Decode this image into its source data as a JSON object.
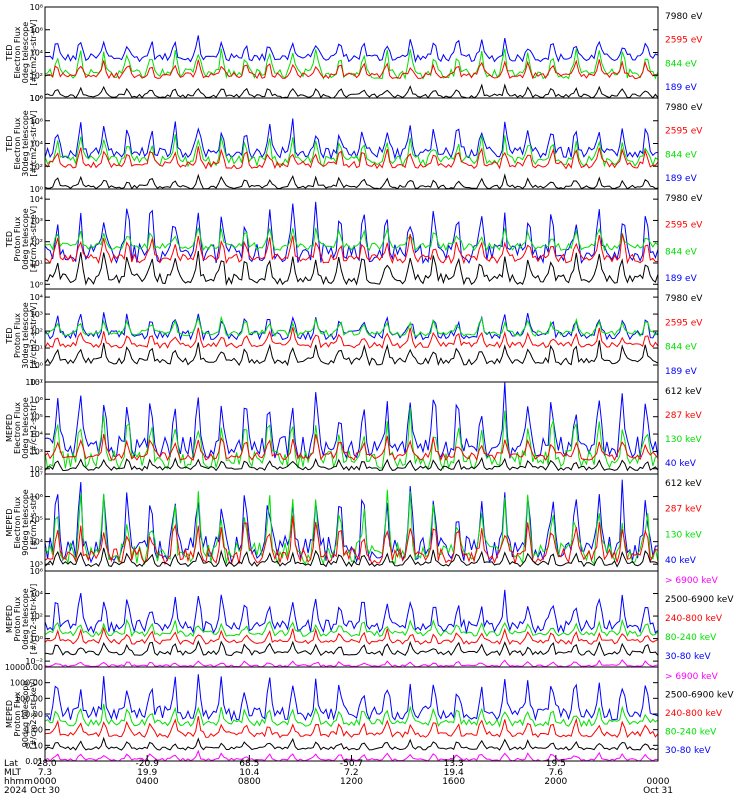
{
  "colors": {
    "blue": "#0000ff",
    "red": "#ff0000",
    "green": "#00e000",
    "black": "#000000",
    "magenta": "#ff00ff"
  },
  "chart_data": [
    {
      "type": "line",
      "ylabel": [
        "TED",
        "Electron Flux",
        "0deg telescope",
        "[#/cm2-s-str-eV]"
      ],
      "y_tick_labels": [
        "10⁰",
        "10²",
        "10⁴",
        "10⁶",
        "10⁸"
      ],
      "ylim": [
        1,
        100000000
      ],
      "yscale": "log",
      "series": [
        {
          "name": "7980 eV",
          "color": "black",
          "level": [
            0,
            1
          ]
        },
        {
          "name": "2595 eV",
          "color": "red",
          "level": [
            1.7,
            3.2
          ]
        },
        {
          "name": "844 eV",
          "color": "green",
          "level": [
            1.7,
            4.2
          ]
        },
        {
          "name": "189 eV",
          "color": "blue",
          "level": [
            3.2,
            5.2
          ]
        }
      ]
    },
    {
      "type": "line",
      "ylabel": [
        "TED",
        "Electron Flux",
        "30deg telescope",
        "[#/cm2-s-str-eV]"
      ],
      "y_tick_labels": [
        "10⁰",
        "10²",
        "10⁴",
        "10⁶",
        "10⁸"
      ],
      "ylim": [
        1,
        100000000
      ],
      "yscale": "log",
      "series": [
        {
          "name": "7980 eV",
          "color": "black",
          "level": [
            0,
            1
          ]
        },
        {
          "name": "2595 eV",
          "color": "red",
          "level": [
            1.8,
            3.6
          ]
        },
        {
          "name": "844 eV",
          "color": "green",
          "level": [
            2,
            4.6
          ]
        },
        {
          "name": "189 eV",
          "color": "blue",
          "level": [
            2.7,
            5.6
          ]
        }
      ]
    },
    {
      "type": "line",
      "ylabel": [
        "TED",
        "Proton Flux",
        "0deg telescope",
        "[#/cm2-s-str-eV]"
      ],
      "y_tick_labels": [
        "10⁰",
        "10¹",
        "10²",
        "10³",
        "10⁴"
      ],
      "ylim": [
        0.6,
        30000
      ],
      "yscale": "log",
      "series": [
        {
          "name": "7980 eV",
          "color": "black",
          "level": [
            0,
            1.4
          ]
        },
        {
          "name": "2595 eV",
          "color": "red",
          "level": [
            1,
            2.2
          ]
        },
        {
          "name": "844 eV",
          "color": "green",
          "level": [
            1.6,
            2.6
          ]
        },
        {
          "name": "189 eV",
          "color": "blue",
          "level": [
            1,
            3.6
          ]
        }
      ]
    },
    {
      "type": "line",
      "ylabel": [
        "TED",
        "Proton Flux",
        "30deg telescope",
        "[#/cm2-s-str-eV]"
      ],
      "y_tick_labels": [
        "10⁻¹",
        "10⁰",
        "10¹",
        "10²",
        "10³",
        "10⁴"
      ],
      "ylim": [
        0.1,
        30000
      ],
      "yscale": "log",
      "series": [
        {
          "name": "7980 eV",
          "color": "black",
          "level": [
            0,
            1.2
          ]
        },
        {
          "name": "2595 eV",
          "color": "red",
          "level": [
            1,
            2
          ]
        },
        {
          "name": "844 eV",
          "color": "green",
          "level": [
            1.7,
            2.7
          ]
        },
        {
          "name": "189 eV",
          "color": "blue",
          "level": [
            1.5,
            3
          ]
        }
      ]
    },
    {
      "type": "line",
      "ylabel": [
        "MEPED",
        "Electron Flux",
        "0deg telescope",
        "[#/cm2-s-str]"
      ],
      "y_tick_labels": [
        "10²",
        "10³",
        "10⁴",
        "10⁵",
        "10⁶",
        "10⁷"
      ],
      "ylim": [
        50,
        10000000
      ],
      "yscale": "log",
      "series": [
        {
          "name": "612 keV",
          "color": "black",
          "level": [
            1.9,
            2.6
          ]
        },
        {
          "name": "287 keV",
          "color": "red",
          "level": [
            2.5,
            3.8
          ]
        },
        {
          "name": "130 keV",
          "color": "green",
          "level": [
            2,
            5
          ]
        },
        {
          "name": "40 keV",
          "color": "blue",
          "level": [
            2.6,
            6.2
          ]
        }
      ]
    },
    {
      "type": "line",
      "ylabel": [
        "MEPED",
        "Electron Flux",
        "90deg telescope",
        "[#/cm2-s-str]"
      ],
      "y_tick_labels": [
        "10³",
        "10⁴",
        "10⁵",
        "10⁶",
        "10⁷"
      ],
      "ylim": [
        500,
        10000000
      ],
      "yscale": "log",
      "series": [
        {
          "name": "612 keV",
          "color": "black",
          "level": [
            2.9,
            3.6
          ]
        },
        {
          "name": "287 keV",
          "color": "red",
          "level": [
            3,
            5
          ]
        },
        {
          "name": "130 keV",
          "color": "green",
          "level": [
            3,
            5.8
          ]
        },
        {
          "name": "40 keV",
          "color": "blue",
          "level": [
            3.1,
            6.4
          ]
        }
      ]
    },
    {
      "type": "line",
      "ylabel": [
        "MEPED",
        "Proton Flux",
        "0deg telescope",
        "[#/cm2-s-str-keV]"
      ],
      "y_tick_labels": [
        "10⁻²",
        "10⁰",
        "10²",
        "10⁴",
        "10⁶"
      ],
      "ylim": [
        0.003,
        1000000
      ],
      "yscale": "log",
      "series": [
        {
          "name": "> 6900 keV",
          "color": "magenta",
          "level": [
            -2.5,
            -2
          ]
        },
        {
          "name": "2500-6900 keV",
          "color": "black",
          "level": [
            -1.5,
            -0.3
          ]
        },
        {
          "name": "240-800 keV",
          "color": "red",
          "level": [
            -0.5,
            0.7
          ]
        },
        {
          "name": "80-240 keV",
          "color": "green",
          "level": [
            0.2,
            1.6
          ]
        },
        {
          "name": "30-80 keV",
          "color": "blue",
          "level": [
            0.5,
            3.8
          ]
        }
      ]
    },
    {
      "type": "line",
      "ylabel": [
        "MEPED",
        "Proton Flux",
        "90deg telescope",
        "[#/cm2-s-str-keV]"
      ],
      "y_tick_labels": [
        "0.01",
        "0.10",
        "1.00",
        "10.00",
        "100.00",
        "1000.00",
        "10000.00"
      ],
      "ylim": [
        0.01,
        10000
      ],
      "yscale": "log",
      "series": [
        {
          "name": "> 6900 keV",
          "color": "magenta",
          "level": [
            -2,
            -1.5
          ]
        },
        {
          "name": "2500-6900 keV",
          "color": "black",
          "level": [
            -1.3,
            -0.7
          ]
        },
        {
          "name": "240-800 keV",
          "color": "red",
          "level": [
            -0.5,
            0.6
          ]
        },
        {
          "name": "80-240 keV",
          "color": "green",
          "level": [
            0.2,
            1.5
          ]
        },
        {
          "name": "30-80 keV",
          "color": "blue",
          "level": [
            0.6,
            3.2
          ]
        }
      ]
    }
  ],
  "x_axis": {
    "row_labels": [
      "Lat",
      "MLT",
      "hhmm",
      "2024"
    ],
    "ticks": [
      {
        "lat": "-28.0",
        "mlt": "7.3",
        "hhmm": "0000",
        "date": "Oct 30"
      },
      {
        "lat": "-20.9",
        "mlt": "19.9",
        "hhmm": "0400",
        "date": ""
      },
      {
        "lat": "68.5",
        "mlt": "10.4",
        "hhmm": "0800",
        "date": ""
      },
      {
        "lat": "-50.7",
        "mlt": "7.2",
        "hhmm": "1200",
        "date": ""
      },
      {
        "lat": "13.3",
        "mlt": "19.4",
        "hhmm": "1600",
        "date": ""
      },
      {
        "lat": "19.5",
        "mlt": "7.6",
        "hhmm": "2000",
        "date": ""
      },
      {
        "lat": "",
        "mlt": "",
        "hhmm": "0000",
        "date": "Oct 31"
      }
    ]
  }
}
